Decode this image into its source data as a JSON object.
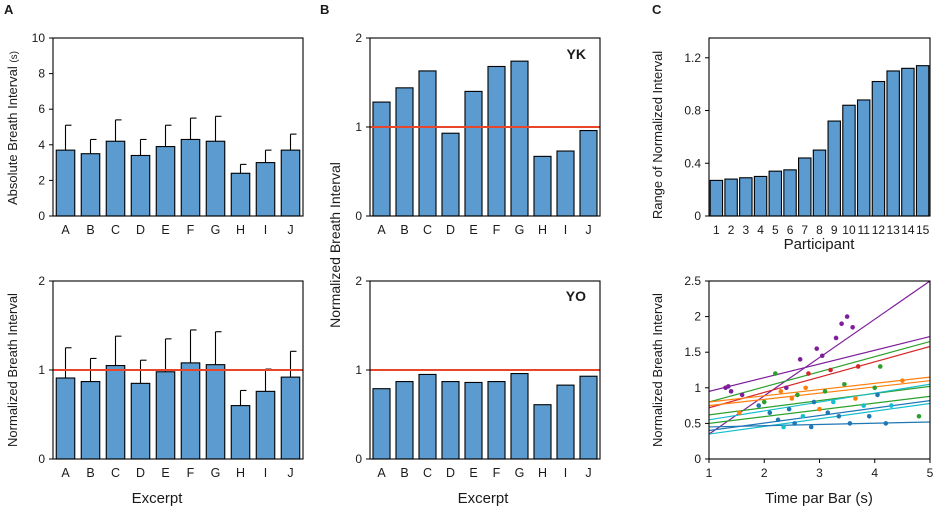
{
  "colors": {
    "bar": "#5b9bd0",
    "reference_line": "#e8452a",
    "scatter_palette": [
      "#1f77b4",
      "#ff7f0e",
      "#2ca02c",
      "#7e1e9c",
      "#d62728",
      "#17becf",
      "#8c564b",
      "#bcbd22",
      "#e377c2",
      "#0072bd",
      "#7f7f7f",
      "#a6761d"
    ]
  },
  "panels": {
    "A_label": "A",
    "B_label": "B",
    "C_label": "C",
    "yk_tag": "YK",
    "yo_tag": "YO"
  },
  "chart_data": [
    {
      "id": "A-top",
      "type": "bar",
      "panel": "A",
      "categories": [
        "A",
        "B",
        "C",
        "D",
        "E",
        "F",
        "G",
        "H",
        "I",
        "J"
      ],
      "values": [
        3.7,
        3.5,
        4.2,
        3.4,
        3.9,
        4.3,
        4.2,
        2.4,
        3.0,
        3.7
      ],
      "errors": [
        1.4,
        0.8,
        1.2,
        0.9,
        1.2,
        1.2,
        1.4,
        0.5,
        0.7,
        0.9
      ],
      "ylabel": "Absolute Breath Interval",
      "yunit": "(s)",
      "ylim": [
        0,
        10
      ],
      "yticks": [
        0,
        2,
        4,
        6,
        8,
        10
      ]
    },
    {
      "id": "A-bottom",
      "type": "bar",
      "panel": "A",
      "categories": [
        "A",
        "B",
        "C",
        "D",
        "E",
        "F",
        "G",
        "H",
        "I",
        "J"
      ],
      "values": [
        0.91,
        0.87,
        1.05,
        0.85,
        0.98,
        1.08,
        1.06,
        0.6,
        0.76,
        0.92
      ],
      "errors": [
        0.34,
        0.26,
        0.33,
        0.26,
        0.37,
        0.37,
        0.37,
        0.17,
        0.25,
        0.29
      ],
      "reference": 1.0,
      "ylabel": "Normalized Breath Interval",
      "xlabel": "Excerpt",
      "ylim": [
        0,
        2
      ],
      "yticks": [
        0,
        1,
        2
      ]
    },
    {
      "id": "B-top",
      "type": "bar",
      "panel": "B",
      "participant": "YK",
      "categories": [
        "A",
        "B",
        "C",
        "D",
        "E",
        "F",
        "G",
        "H",
        "I",
        "J"
      ],
      "values": [
        1.28,
        1.44,
        1.63,
        0.93,
        1.4,
        1.68,
        1.74,
        0.67,
        0.73,
        0.96
      ],
      "reference": 1.0,
      "ylim": [
        0,
        2
      ],
      "yticks": [
        0,
        1,
        2
      ]
    },
    {
      "id": "B-bottom",
      "type": "bar",
      "panel": "B",
      "participant": "YO",
      "categories": [
        "A",
        "B",
        "C",
        "D",
        "E",
        "F",
        "G",
        "H",
        "I",
        "J"
      ],
      "values": [
        0.79,
        0.87,
        0.95,
        0.87,
        0.86,
        0.87,
        0.96,
        0.61,
        0.83,
        0.93
      ],
      "reference": 1.0,
      "ylabel": "Normalized Breath Interval",
      "xlabel": "Excerpt",
      "ylim": [
        0,
        2
      ],
      "yticks": [
        0,
        1,
        2
      ]
    },
    {
      "id": "C-top",
      "type": "bar",
      "panel": "C",
      "categories": [
        "1",
        "2",
        "3",
        "4",
        "5",
        "6",
        "7",
        "8",
        "9",
        "10",
        "11",
        "12",
        "13",
        "14",
        "15"
      ],
      "values": [
        0.27,
        0.28,
        0.29,
        0.3,
        0.34,
        0.35,
        0.44,
        0.5,
        0.72,
        0.84,
        0.88,
        1.02,
        1.1,
        1.12,
        1.14
      ],
      "ylabel": "Range of Normalized Interval",
      "xlabel": "Participant",
      "ylim": [
        0,
        1.35
      ],
      "yticks": [
        0,
        0.4,
        0.8,
        1.2
      ]
    },
    {
      "id": "C-bottom",
      "type": "scatter",
      "panel": "C",
      "xlabel": "Time par Bar (s)",
      "ylabel": "Normalized Breath Interval",
      "xlim": [
        1,
        5
      ],
      "ylim": [
        0,
        2.5
      ],
      "xticks": [
        1,
        2,
        3,
        4,
        5
      ],
      "yticks": [
        0,
        0.5,
        1,
        1.5,
        2,
        2.5
      ],
      "fit_lines": [
        {
          "x": [
            1,
            5
          ],
          "y": [
            0.35,
            2.5
          ],
          "color_index": 3
        },
        {
          "x": [
            1,
            5
          ],
          "y": [
            0.95,
            1.72
          ],
          "color_index": 3
        },
        {
          "x": [
            1,
            5
          ],
          "y": [
            0.8,
            1.65
          ],
          "color_index": 2
        },
        {
          "x": [
            1,
            5
          ],
          "y": [
            0.72,
            1.58
          ],
          "color_index": 4
        },
        {
          "x": [
            1,
            5
          ],
          "y": [
            0.8,
            1.15
          ],
          "color_index": 1
        },
        {
          "x": [
            1,
            5
          ],
          "y": [
            0.75,
            1.1
          ],
          "color_index": 1
        },
        {
          "x": [
            1,
            5
          ],
          "y": [
            0.62,
            1.02
          ],
          "color_index": 2
        },
        {
          "x": [
            1,
            5
          ],
          "y": [
            0.55,
            1.05
          ],
          "color_index": 5
        },
        {
          "x": [
            1,
            5
          ],
          "y": [
            0.5,
            0.88
          ],
          "color_index": 2
        },
        {
          "x": [
            1,
            5
          ],
          "y": [
            0.4,
            0.82
          ],
          "color_index": 0
        },
        {
          "x": [
            1,
            5
          ],
          "y": [
            0.35,
            0.78
          ],
          "color_index": 5
        },
        {
          "x": [
            1,
            5
          ],
          "y": [
            0.45,
            0.52
          ],
          "color_index": 0
        }
      ],
      "points": [
        {
          "x": 1.3,
          "y": 1.0,
          "c": 3
        },
        {
          "x": 1.35,
          "y": 1.02,
          "c": 3
        },
        {
          "x": 1.4,
          "y": 0.95,
          "c": 3
        },
        {
          "x": 1.55,
          "y": 0.65,
          "c": 1
        },
        {
          "x": 1.6,
          "y": 0.9,
          "c": 3
        },
        {
          "x": 1.9,
          "y": 0.75,
          "c": 0
        },
        {
          "x": 2.0,
          "y": 0.8,
          "c": 2
        },
        {
          "x": 2.1,
          "y": 0.65,
          "c": 0
        },
        {
          "x": 2.2,
          "y": 1.2,
          "c": 2
        },
        {
          "x": 2.25,
          "y": 0.55,
          "c": 0
        },
        {
          "x": 2.3,
          "y": 0.95,
          "c": 1
        },
        {
          "x": 2.35,
          "y": 0.45,
          "c": 5
        },
        {
          "x": 2.4,
          "y": 1.0,
          "c": 3
        },
        {
          "x": 2.45,
          "y": 0.7,
          "c": 0
        },
        {
          "x": 2.5,
          "y": 0.85,
          "c": 1
        },
        {
          "x": 2.55,
          "y": 0.5,
          "c": 0
        },
        {
          "x": 2.6,
          "y": 0.9,
          "c": 2
        },
        {
          "x": 2.65,
          "y": 1.4,
          "c": 3
        },
        {
          "x": 2.7,
          "y": 0.6,
          "c": 5
        },
        {
          "x": 2.75,
          "y": 1.0,
          "c": 1
        },
        {
          "x": 2.8,
          "y": 1.2,
          "c": 4
        },
        {
          "x": 2.85,
          "y": 0.45,
          "c": 0
        },
        {
          "x": 2.9,
          "y": 0.8,
          "c": 0
        },
        {
          "x": 2.95,
          "y": 1.55,
          "c": 3
        },
        {
          "x": 3.0,
          "y": 0.7,
          "c": 1
        },
        {
          "x": 3.05,
          "y": 1.45,
          "c": 3
        },
        {
          "x": 3.1,
          "y": 0.95,
          "c": 2
        },
        {
          "x": 3.15,
          "y": 0.65,
          "c": 0
        },
        {
          "x": 3.2,
          "y": 1.25,
          "c": 4
        },
        {
          "x": 3.25,
          "y": 0.8,
          "c": 5
        },
        {
          "x": 3.3,
          "y": 1.7,
          "c": 3
        },
        {
          "x": 3.35,
          "y": 0.6,
          "c": 0
        },
        {
          "x": 3.4,
          "y": 1.9,
          "c": 3
        },
        {
          "x": 3.45,
          "y": 1.05,
          "c": 2
        },
        {
          "x": 3.5,
          "y": 2.0,
          "c": 3
        },
        {
          "x": 3.55,
          "y": 0.5,
          "c": 0
        },
        {
          "x": 3.6,
          "y": 1.85,
          "c": 3
        },
        {
          "x": 3.65,
          "y": 0.85,
          "c": 1
        },
        {
          "x": 3.7,
          "y": 1.3,
          "c": 4
        },
        {
          "x": 3.8,
          "y": 0.75,
          "c": 5
        },
        {
          "x": 3.9,
          "y": 0.6,
          "c": 0
        },
        {
          "x": 4.0,
          "y": 1.0,
          "c": 2
        },
        {
          "x": 4.05,
          "y": 0.9,
          "c": 0
        },
        {
          "x": 4.1,
          "y": 1.3,
          "c": 2
        },
        {
          "x": 4.2,
          "y": 0.5,
          "c": 0
        },
        {
          "x": 4.3,
          "y": 0.75,
          "c": 5
        },
        {
          "x": 4.5,
          "y": 1.1,
          "c": 1
        },
        {
          "x": 4.8,
          "y": 0.6,
          "c": 2
        }
      ]
    }
  ]
}
